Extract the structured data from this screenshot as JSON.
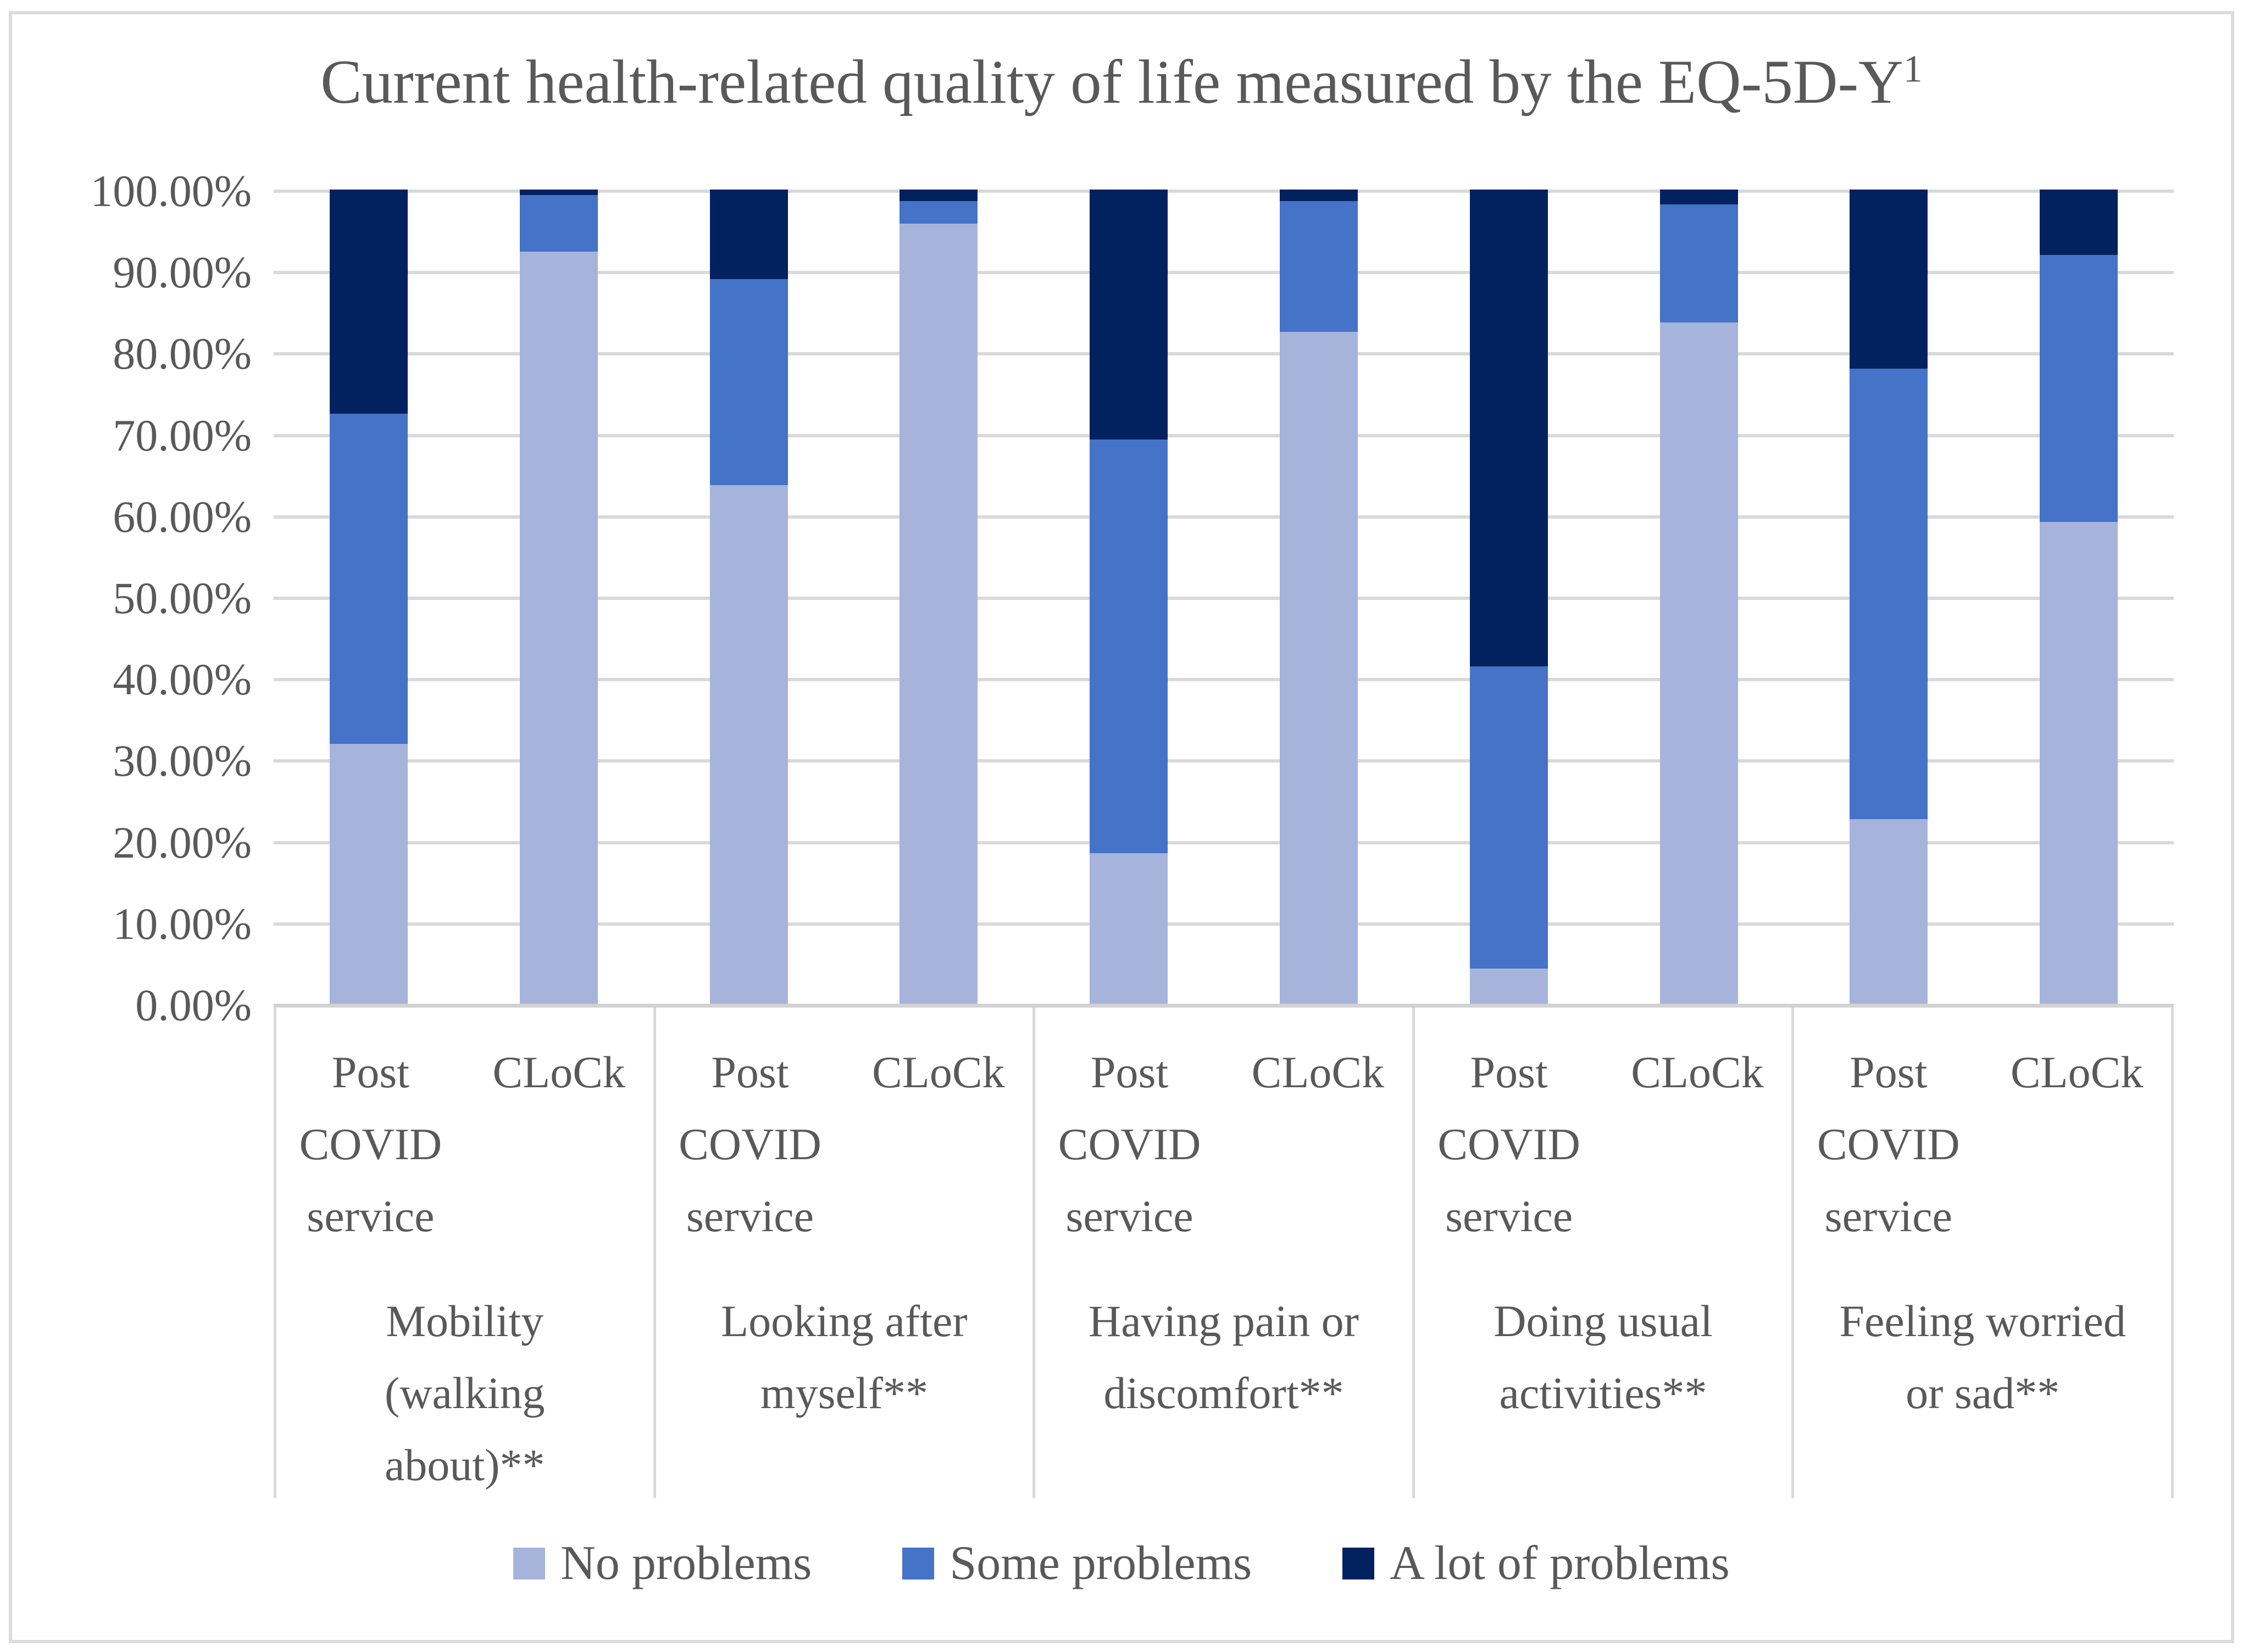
{
  "title": {
    "text": "Current health-related quality of life measured by the EQ-5D-Y",
    "superscript": "1"
  },
  "colors": {
    "no_problems": "#a6b4db",
    "some_problems": "#4473c7",
    "a_lot_of_problems": "#02215f",
    "gridline": "#d9d9d9",
    "text": "#595959",
    "frame_border": "#dcdcdc"
  },
  "y_axis": {
    "tick_labels": [
      "100.00%",
      "90.00%",
      "80.00%",
      "70.00%",
      "60.00%",
      "50.00%",
      "40.00%",
      "30.00%",
      "20.00%",
      "10.00%",
      "0.00%"
    ]
  },
  "x_axis": {
    "post_covid_lines": [
      "Post",
      "COVID",
      "service"
    ],
    "clock_label": "CLoCk",
    "category_labels": [
      "Mobility\n(walking\nabout)**",
      "Looking after\nmyself**",
      "Having pain or\ndiscomfort**",
      "Doing usual\nactivities**",
      "Feeling worried\nor sad**"
    ]
  },
  "legend": {
    "items": [
      {
        "label": "No problems",
        "color_key": "no_problems"
      },
      {
        "label": "Some problems",
        "color_key": "some_problems"
      },
      {
        "label": "A lot of problems",
        "color_key": "a_lot_of_problems"
      }
    ]
  },
  "chart_data": {
    "type": "bar",
    "stacked": true,
    "title": "Current health-related quality of life measured by the EQ-5D-Y1",
    "ylim": [
      0,
      100
    ],
    "grid": true,
    "legend_position": "bottom",
    "categories": [
      "Mobility (walking about)**",
      "Looking after myself**",
      "Having pain or discomfort**",
      "Doing usual activities**",
      "Feeling worried or sad**"
    ],
    "sub_categories": [
      "Post COVID service",
      "CLoCk"
    ],
    "bar_order_note": "values listed per bar: Post COVID service then CLoCk for each category",
    "series": [
      {
        "name": "No problems",
        "values": [
          31.9,
          92.4,
          63.7,
          95.8,
          18.5,
          82.5,
          4.3,
          83.7,
          22.7,
          59.2
        ]
      },
      {
        "name": "Some problems",
        "values": [
          40.6,
          6.9,
          25.3,
          2.8,
          50.8,
          16.1,
          37.1,
          14.5,
          55.3,
          32.8
        ]
      },
      {
        "name": "A lot of problems",
        "values": [
          27.5,
          0.7,
          11.0,
          1.4,
          30.7,
          1.4,
          58.6,
          1.8,
          22.0,
          8.0
        ]
      }
    ]
  }
}
